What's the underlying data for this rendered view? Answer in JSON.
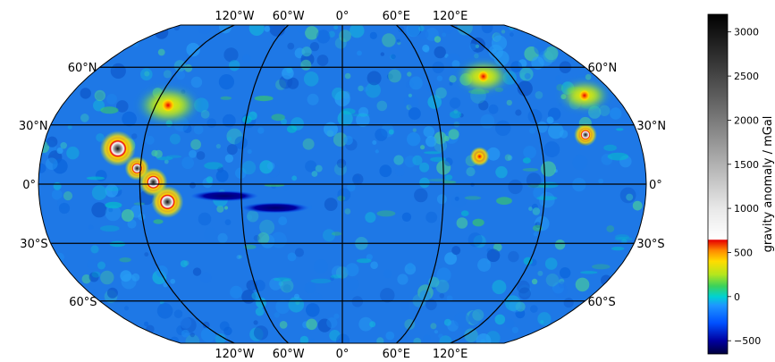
{
  "map": {
    "projection": "Robinson",
    "basemap": "gravity anomaly",
    "graticule_lat": [
      -60,
      -30,
      0,
      30,
      60
    ],
    "graticule_lon": [
      -180,
      -120,
      -60,
      0,
      60,
      120,
      180
    ],
    "lon_tick_labels_top": [
      "120°W",
      "60°W",
      "0°",
      "60°E",
      "120°E"
    ],
    "lon_tick_labels_bottom": [
      "120°W",
      "60°W",
      "0°",
      "60°E",
      "120°E"
    ],
    "lat_tick_labels_left": [
      "60°N",
      "30°N",
      "0°",
      "30°S",
      "60°S"
    ],
    "lat_tick_labels_right": [
      "60°N",
      "30°N",
      "0°",
      "30°S",
      "60°S"
    ],
    "colors": {
      "ocean_base": "#1e78e6",
      "graticule": "#000000",
      "positive_high": "#ff2a00",
      "positive_mid": "#ffe600",
      "negative": "#00006e"
    },
    "features": [
      {
        "kind": "peak",
        "lon": -135,
        "lat": 18,
        "value": 3000
      },
      {
        "kind": "peak",
        "lon": -112,
        "lat": 1,
        "value": 2000
      },
      {
        "kind": "peak",
        "lon": -104,
        "lat": -9,
        "value": 2500
      },
      {
        "kind": "peak",
        "lon": -122,
        "lat": 8,
        "value": 1400
      },
      {
        "kind": "peak",
        "lon": 148,
        "lat": 25,
        "value": 1200
      },
      {
        "kind": "peak",
        "lon": 82,
        "lat": 14,
        "value": 700
      },
      {
        "kind": "high",
        "lon": -112,
        "lat": 40,
        "value": 600
      },
      {
        "kind": "high",
        "lon": 100,
        "lat": 55,
        "value": 400
      },
      {
        "kind": "high",
        "lon": 160,
        "lat": 45,
        "value": 350
      },
      {
        "kind": "low",
        "lon": -70,
        "lat": -6,
        "value": -600
      },
      {
        "kind": "low",
        "lon": -40,
        "lat": -12,
        "value": -550
      }
    ]
  },
  "colorbar": {
    "title": "gravity anomaly / mGal",
    "min": -650,
    "max": 3200,
    "ticks": [
      -500,
      0,
      500,
      1000,
      1500,
      2000,
      2500,
      3000
    ],
    "tick_labels": [
      "−500",
      "0",
      "500",
      "1000",
      "1500",
      "2000",
      "2500",
      "3000"
    ],
    "stops": [
      {
        "value": -650,
        "color": "#00003c"
      },
      {
        "value": -500,
        "color": "#0000a0"
      },
      {
        "value": -300,
        "color": "#0050ff"
      },
      {
        "value": -100,
        "color": "#1e96ff"
      },
      {
        "value": 0,
        "color": "#00d2d2"
      },
      {
        "value": 120,
        "color": "#3cd25a"
      },
      {
        "value": 250,
        "color": "#b4e61e"
      },
      {
        "value": 400,
        "color": "#ffdc00"
      },
      {
        "value": 520,
        "color": "#ff8c00"
      },
      {
        "value": 640,
        "color": "#e60000"
      },
      {
        "value": 650,
        "color": "#ffffff"
      },
      {
        "value": 1000,
        "color": "#e8e8e8"
      },
      {
        "value": 1600,
        "color": "#a6a6a6"
      },
      {
        "value": 2300,
        "color": "#5a5a5a"
      },
      {
        "value": 3200,
        "color": "#000000"
      }
    ]
  }
}
